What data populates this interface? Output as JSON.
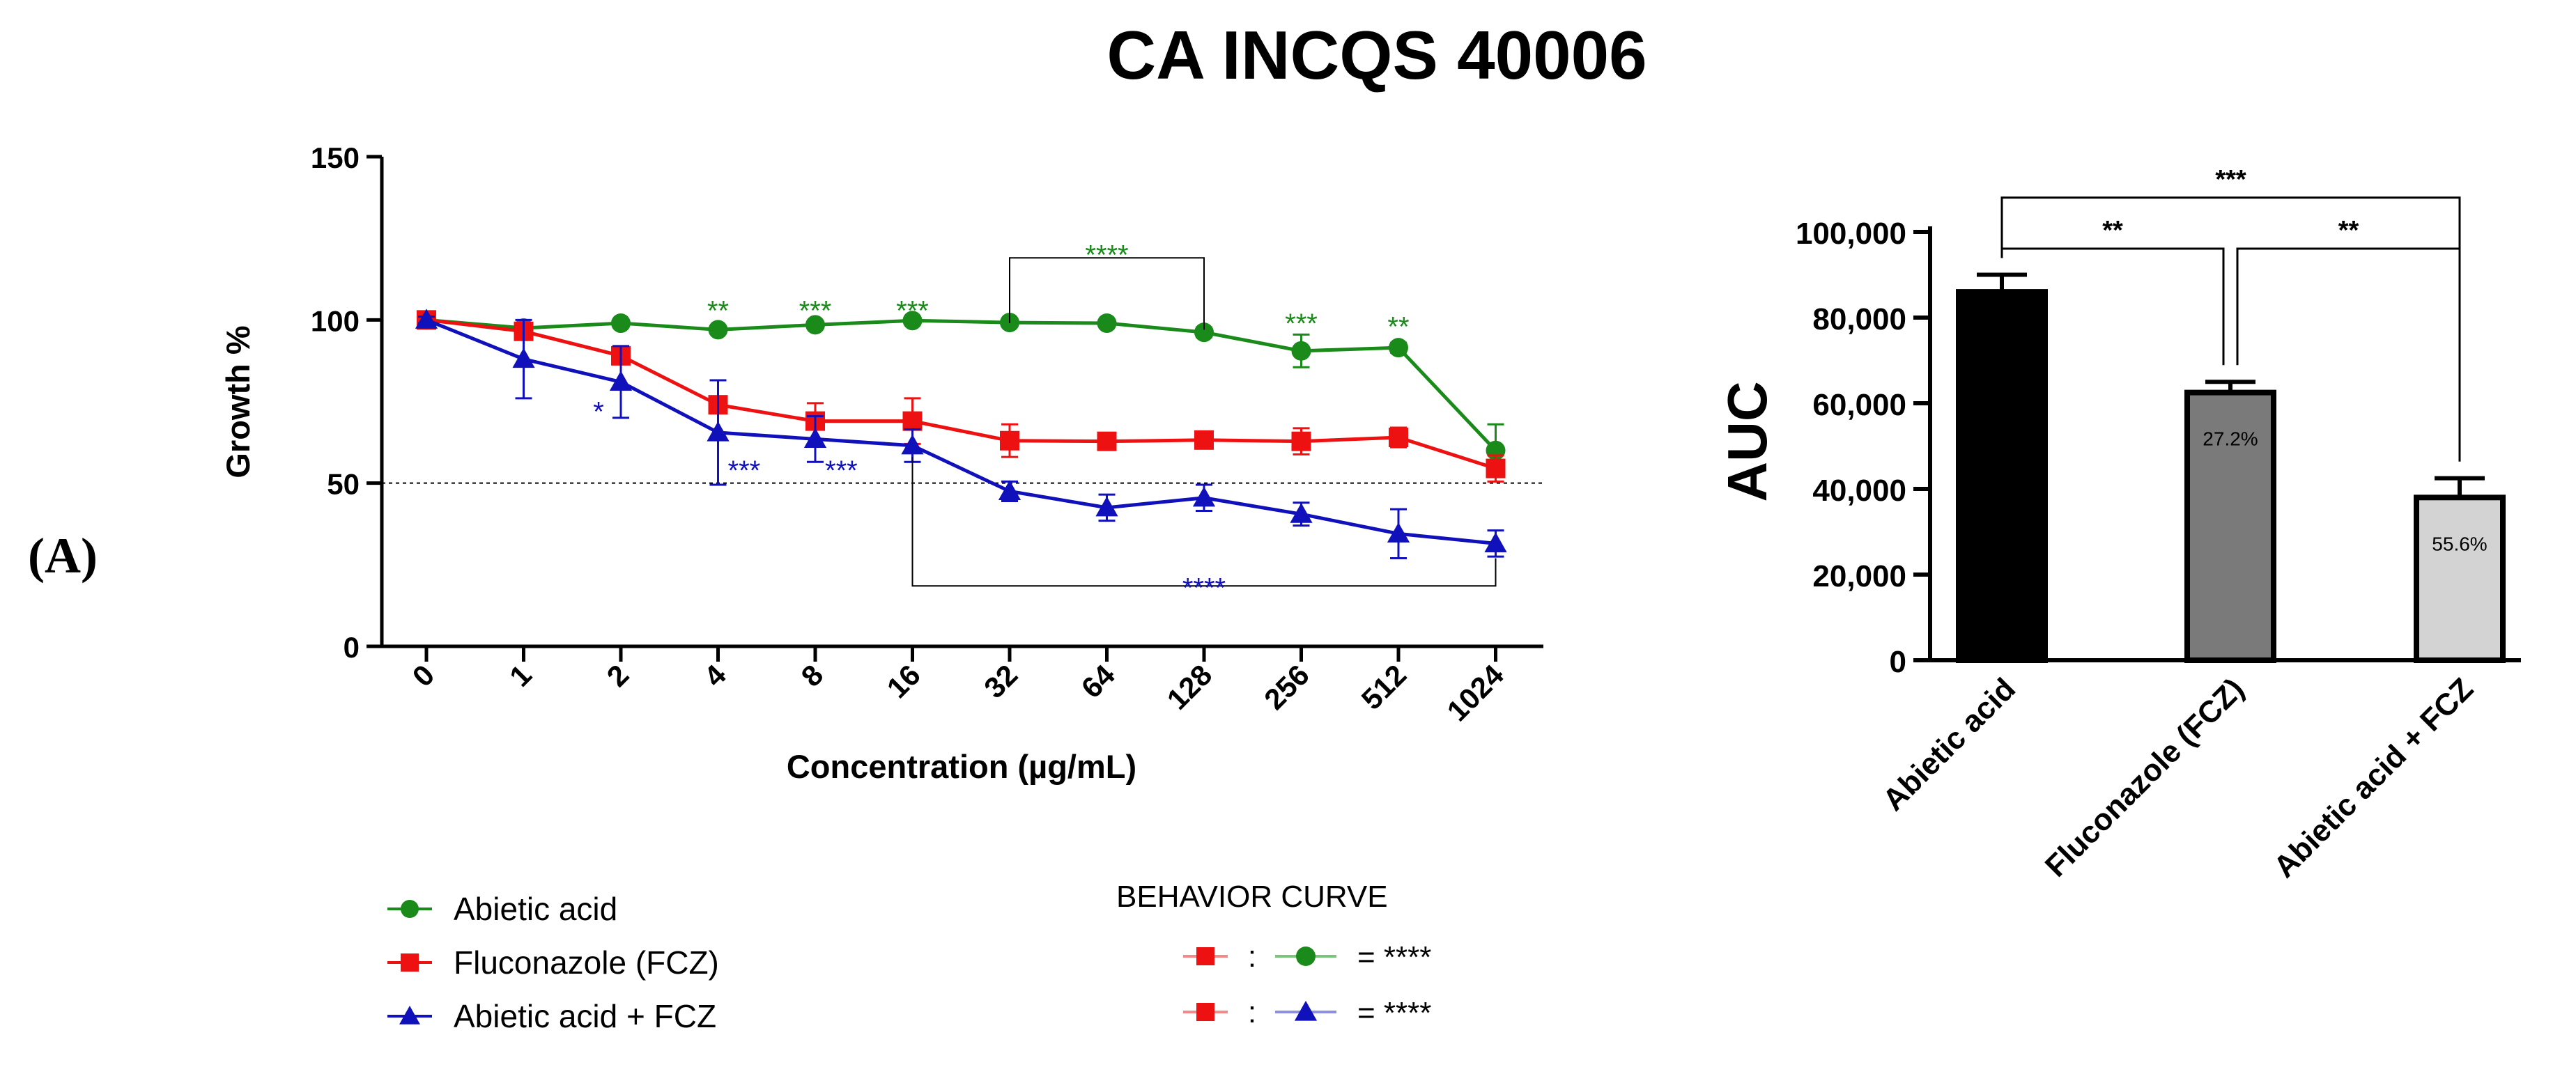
{
  "figure": {
    "title": "CA INCQS 40006",
    "panel_label": "(A)"
  },
  "chart_data": [
    {
      "type": "line",
      "title": "",
      "xlabel": "Concentration (µg/mL)",
      "ylabel": "Growth %",
      "ylim": [
        0,
        150
      ],
      "yticks": [
        "0",
        "50",
        "100",
        "150"
      ],
      "categories": [
        "0",
        "1",
        "2",
        "4",
        "8",
        "16",
        "32",
        "64",
        "128",
        "256",
        "512",
        "1024"
      ],
      "reference_line": 50,
      "series": [
        {
          "name": "Abietic acid",
          "color": "#1a8a1a",
          "marker": "circle",
          "values": [
            100,
            97.5,
            99,
            97,
            98.5,
            99.8,
            99.2,
            99,
            96.2,
            90.5,
            91.5,
            60
          ],
          "errors": [
            1,
            1,
            1,
            1,
            1,
            1,
            1,
            1,
            1.5,
            5,
            1.5,
            8
          ]
        },
        {
          "name": "Fluconazole (FCZ)",
          "color": "#ee1111",
          "marker": "square",
          "values": [
            100,
            96.5,
            89,
            74,
            69,
            69,
            63,
            62.8,
            63.2,
            62.8,
            64,
            54.5
          ],
          "errors": [
            1,
            1.5,
            1.5,
            2,
            5.5,
            7,
            5,
            1.5,
            1.5,
            4,
            3,
            4
          ]
        },
        {
          "name": "Abietic acid  + FCZ",
          "color": "#1111bb",
          "marker": "triangle",
          "values": [
            100,
            88,
            81,
            65.5,
            63.5,
            61.5,
            47.5,
            42.5,
            45.5,
            40.5,
            34.5,
            31.5
          ],
          "errors": [
            1,
            12,
            11,
            16,
            7,
            5,
            3,
            4,
            4,
            3.5,
            7.5,
            4
          ]
        }
      ],
      "annotations": [
        {
          "text": "**",
          "x": "4",
          "y": 103,
          "color": "#1a8a1a"
        },
        {
          "text": "***",
          "x": "8",
          "y": 103,
          "color": "#1a8a1a"
        },
        {
          "text": "***",
          "x": "16",
          "y": 103,
          "color": "#1a8a1a"
        },
        {
          "text": "****",
          "x": "32-128",
          "y": 120,
          "color": "#1a8a1a"
        },
        {
          "text": "***",
          "x": "256",
          "y": 99,
          "color": "#1a8a1a"
        },
        {
          "text": "**",
          "x": "512",
          "y": 98,
          "color": "#1a8a1a"
        },
        {
          "text": "*",
          "x": "2",
          "y": 72,
          "color": "#1111bb"
        },
        {
          "text": "***",
          "x": "4",
          "y": 54,
          "color": "#1111bb"
        },
        {
          "text": "***",
          "x": "8",
          "y": 54,
          "color": "#1111bb"
        },
        {
          "text": "****",
          "x": "16-1024",
          "y": 18,
          "color": "#1111bb"
        }
      ],
      "legend": [
        {
          "label": "Abietic acid",
          "color": "#1a8a1a",
          "marker": "circle"
        },
        {
          "label": "Fluconazole (FCZ)",
          "color": "#ee1111",
          "marker": "square"
        },
        {
          "label": "Abietic acid  + FCZ",
          "color": "#1111bb",
          "marker": "triangle"
        }
      ],
      "behavior_curve": {
        "title": "BEHAVIOR CURVE",
        "rows": [
          {
            "left": "square",
            "left_color": "#ee1111",
            "separator": ":",
            "right": "circle",
            "right_color": "#1a8a1a",
            "result": "= ****"
          },
          {
            "left": "square",
            "left_color": "#ee1111",
            "separator": ":",
            "right": "triangle",
            "right_color": "#1111bb",
            "result": "= ****"
          }
        ]
      }
    },
    {
      "type": "bar",
      "title": "",
      "xlabel": "",
      "ylabel": "AUC",
      "ylim": [
        0,
        100000
      ],
      "yticks": [
        "0",
        "20,000",
        "40,000",
        "60,000",
        "80,000",
        "100,000"
      ],
      "categories": [
        "Abietic acid",
        "Fluconazole (FCZ)",
        "Abietic acid  + FCZ"
      ],
      "values": [
        86000,
        62500,
        38000
      ],
      "errors": [
        4000,
        2500,
        4500
      ],
      "colors": [
        "#000000",
        "#7a7a7a",
        "#d3d3d3"
      ],
      "bar_labels": [
        "",
        "27.2%",
        "55.6%"
      ],
      "significance": [
        {
          "from": 0,
          "to": 1,
          "text": "**"
        },
        {
          "from": 1,
          "to": 2,
          "text": "**"
        },
        {
          "from": 0,
          "to": 2,
          "text": "***"
        }
      ]
    }
  ]
}
